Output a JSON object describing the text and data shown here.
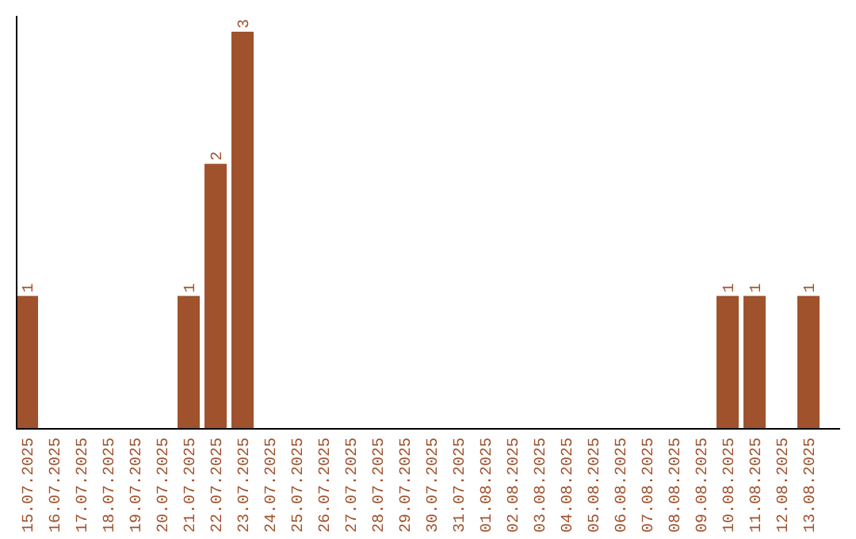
{
  "chart_data": {
    "type": "bar",
    "categories": [
      "15.07.2025",
      "16.07.2025",
      "17.07.2025",
      "18.07.2025",
      "19.07.2025",
      "20.07.2025",
      "21.07.2025",
      "22.07.2025",
      "23.07.2025",
      "24.07.2025",
      "25.07.2025",
      "26.07.2025",
      "27.07.2025",
      "28.07.2025",
      "29.07.2025",
      "30.07.2025",
      "31.07.2025",
      "01.08.2025",
      "02.08.2025",
      "03.08.2025",
      "04.08.2025",
      "05.08.2025",
      "06.08.2025",
      "07.08.2025",
      "08.08.2025",
      "09.08.2025",
      "10.08.2025",
      "11.08.2025",
      "12.08.2025",
      "13.08.2025"
    ],
    "values": [
      1,
      0,
      0,
      0,
      0,
      0,
      1,
      2,
      3,
      0,
      0,
      0,
      0,
      0,
      0,
      0,
      0,
      0,
      0,
      0,
      0,
      0,
      0,
      0,
      0,
      0,
      1,
      1,
      0,
      1
    ],
    "color": "#a0522d",
    "value_labels": [
      "1",
      null,
      null,
      null,
      null,
      null,
      "1",
      "2",
      "3",
      null,
      null,
      null,
      null,
      null,
      null,
      null,
      null,
      null,
      null,
      null,
      null,
      null,
      null,
      null,
      null,
      null,
      "1",
      "1",
      null,
      "1"
    ],
    "tick_labels": "x"
  }
}
